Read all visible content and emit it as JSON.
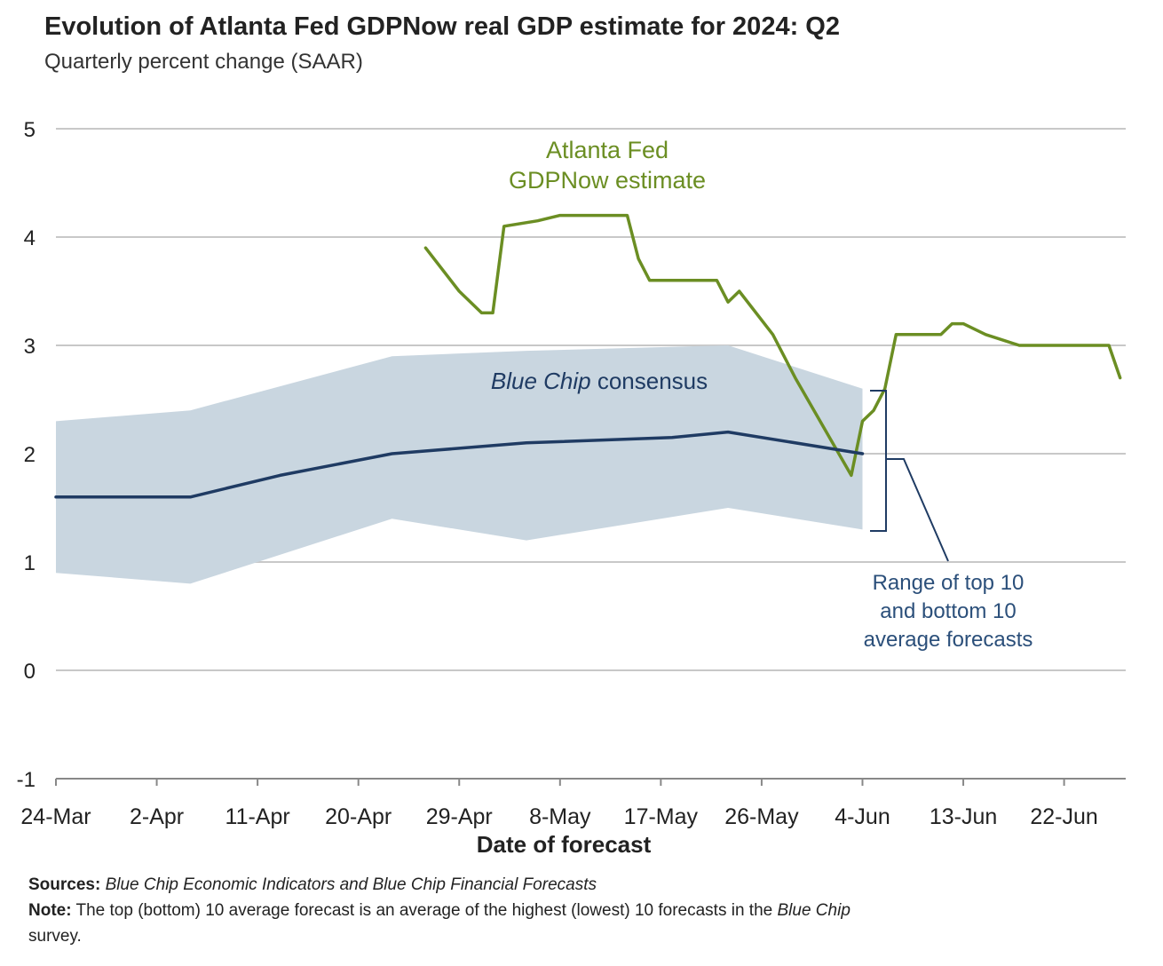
{
  "header": {
    "title": "Evolution of Atlanta Fed GDPNow real GDP estimate for 2024: Q2",
    "subtitle": "Quarterly percent change (SAAR)"
  },
  "footer": {
    "sources_label": "Sources:",
    "sources_text": "Blue Chip Economic Indicators and Blue Chip Financial Forecasts",
    "note_label": "Note:",
    "note_text_1": "The top (bottom) 10 average forecast is an average of the highest (lowest) 10 forecasts in the",
    "note_text_italic": "Blue Chip",
    "note_text_2": "survey."
  },
  "colors": {
    "gdpnow": "#6b8e23",
    "consensus": "#1f3b63",
    "band": "#c9d6e0",
    "grid": "#c8c8c8",
    "annotation": "#2b4f7a"
  },
  "chart_data": {
    "type": "line",
    "xlabel": "Date of forecast",
    "ylabel": "",
    "ylim": [
      -1,
      5
    ],
    "yticks": [
      "5",
      "4",
      "3",
      "2",
      "1",
      "0",
      "-1"
    ],
    "ytick_values": [
      5,
      4,
      3,
      2,
      1,
      0,
      -1
    ],
    "x_tick_labels": [
      "24-Mar",
      "2-Apr",
      "11-Apr",
      "20-Apr",
      "29-Apr",
      "8-May",
      "17-May",
      "26-May",
      "4-Jun",
      "13-Jun",
      "22-Jun"
    ],
    "x_tick_days": [
      0,
      9,
      18,
      27,
      36,
      45,
      54,
      63,
      72,
      81,
      90
    ],
    "x_axis_note": "x values are days after 24-Mar (2024)",
    "xlim_days": [
      0,
      95.5
    ],
    "grid": true,
    "annotations": {
      "gdpnow": [
        "Atlanta Fed",
        "GDPNow estimate"
      ],
      "consensus_italic": "Blue Chip",
      "consensus_rest": " consensus",
      "range": [
        "Range of top 10",
        "and bottom 10",
        "average forecasts"
      ]
    },
    "series": [
      {
        "name": "Atlanta Fed GDPNow estimate",
        "kind": "line",
        "x": [
          33,
          36,
          38,
          39,
          40,
          43,
          45,
          49,
          51,
          52,
          53,
          59,
          60,
          61,
          64,
          65,
          66,
          71,
          72,
          73,
          74,
          75,
          79,
          80,
          81,
          83,
          86,
          88,
          90,
          94,
          95
        ],
        "y": [
          3.9,
          3.5,
          3.3,
          3.3,
          4.1,
          4.15,
          4.2,
          4.2,
          4.2,
          3.8,
          3.6,
          3.6,
          3.4,
          3.5,
          3.1,
          2.9,
          2.7,
          1.8,
          2.3,
          2.4,
          2.6,
          3.1,
          3.1,
          3.2,
          3.2,
          3.1,
          3.0,
          3.0,
          3.0,
          3.0,
          2.7
        ]
      },
      {
        "name": "Blue Chip consensus",
        "kind": "line",
        "x": [
          0,
          12,
          20,
          30,
          42,
          55,
          60,
          72
        ],
        "y": [
          1.6,
          1.6,
          1.8,
          2.0,
          2.1,
          2.15,
          2.2,
          2.0
        ]
      },
      {
        "name": "Range of top 10 and bottom 10 average forecasts",
        "kind": "band",
        "x": [
          0,
          12,
          30,
          42,
          60,
          72
        ],
        "upper": [
          2.3,
          2.4,
          2.9,
          2.95,
          3.0,
          2.6
        ],
        "lower": [
          0.9,
          0.8,
          1.4,
          1.2,
          1.5,
          1.3
        ]
      }
    ]
  }
}
